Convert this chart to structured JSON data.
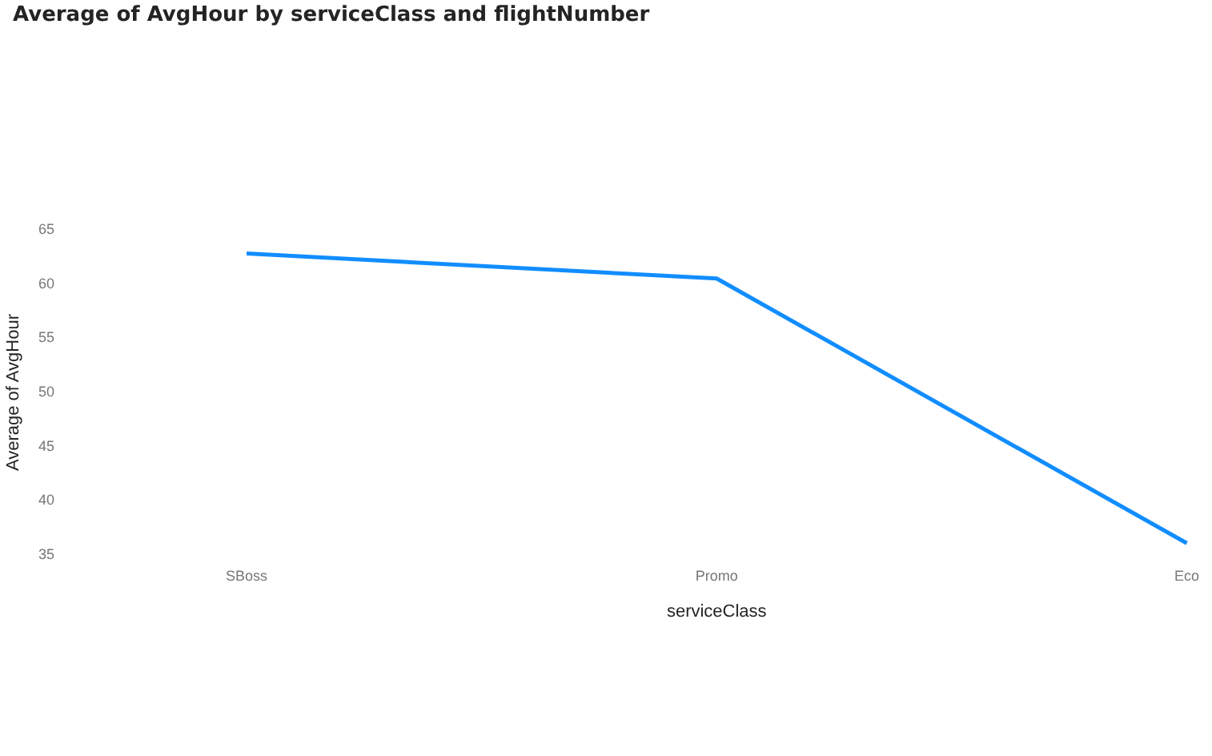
{
  "chart_data": {
    "type": "line",
    "title": "Average of AvgHour by serviceClass and flightNumber",
    "xlabel": "serviceClass",
    "ylabel": "Average of AvgHour",
    "categories": [
      "SBoss",
      "Promo",
      "Eco"
    ],
    "series": [
      {
        "color": "#118dff",
        "values": [
          62.8,
          60.5,
          36.1
        ]
      }
    ],
    "ylim": [
      35,
      65
    ],
    "yticks": [
      35,
      40,
      45,
      50,
      55,
      60,
      65
    ],
    "grid": false,
    "legend": false,
    "marker": "none"
  }
}
